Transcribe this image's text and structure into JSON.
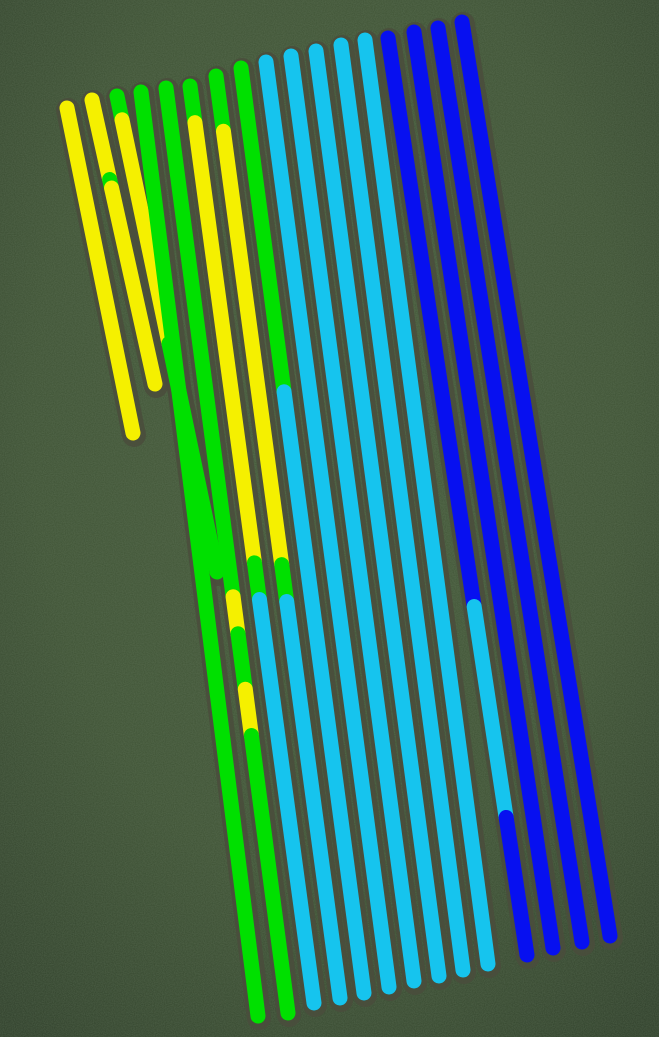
{
  "map": {
    "basemap": "satellite-imagery-grass-field",
    "legend_colors": {
      "yellow": "#f5f000",
      "green": "#00e000",
      "cyan": "#16c4ee",
      "blue": "#0710f0"
    },
    "passes": [
      {
        "id": 1,
        "segments": [
          {
            "color": "yellow"
          }
        ]
      },
      {
        "id": 2,
        "segments": [
          {
            "color": "yellow"
          },
          {
            "color": "green"
          },
          {
            "color": "yellow"
          }
        ]
      },
      {
        "id": 3,
        "segments": [
          {
            "color": "green"
          },
          {
            "color": "yellow"
          },
          {
            "color": "green"
          }
        ]
      },
      {
        "id": 4,
        "segments": [
          {
            "color": "green"
          }
        ]
      },
      {
        "id": 5,
        "segments": [
          {
            "color": "green"
          },
          {
            "color": "yellow"
          },
          {
            "color": "green"
          },
          {
            "color": "yellow"
          },
          {
            "color": "green"
          }
        ]
      },
      {
        "id": 6,
        "segments": [
          {
            "color": "green"
          },
          {
            "color": "yellow"
          },
          {
            "color": "green"
          },
          {
            "color": "cyan"
          }
        ]
      },
      {
        "id": 7,
        "segments": [
          {
            "color": "green"
          },
          {
            "color": "yellow"
          },
          {
            "color": "green"
          },
          {
            "color": "cyan"
          }
        ]
      },
      {
        "id": 8,
        "segments": [
          {
            "color": "green"
          },
          {
            "color": "cyan"
          }
        ]
      },
      {
        "id": 9,
        "segments": [
          {
            "color": "cyan"
          }
        ]
      },
      {
        "id": 10,
        "segments": [
          {
            "color": "cyan"
          }
        ]
      },
      {
        "id": 11,
        "segments": [
          {
            "color": "cyan"
          }
        ]
      },
      {
        "id": 12,
        "segments": [
          {
            "color": "cyan"
          }
        ]
      },
      {
        "id": 13,
        "segments": [
          {
            "color": "cyan"
          }
        ]
      },
      {
        "id": 14,
        "segments": [
          {
            "color": "blue"
          },
          {
            "color": "cyan"
          },
          {
            "color": "blue"
          }
        ]
      },
      {
        "id": 15,
        "segments": [
          {
            "color": "blue"
          }
        ]
      },
      {
        "id": 16,
        "segments": [
          {
            "color": "blue"
          }
        ]
      },
      {
        "id": 17,
        "segments": [
          {
            "color": "blue"
          }
        ]
      }
    ]
  }
}
